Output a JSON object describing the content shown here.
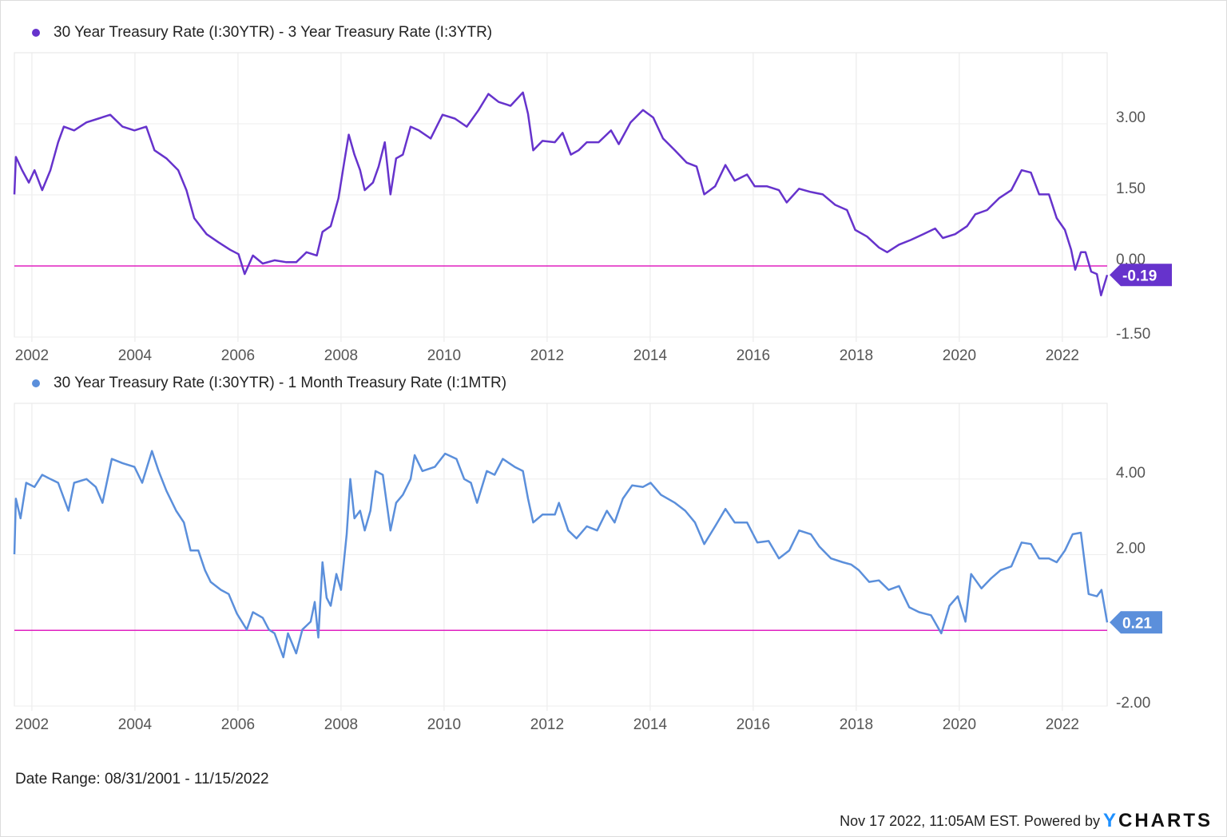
{
  "chart_data": [
    {
      "type": "line",
      "title": "30 Year Treasury Rate (I:30YTR) - 3 Year Treasury Rate (I:3YTR)",
      "color": "#6633cc",
      "ylim": [
        -1.5,
        4.5
      ],
      "yticks": [
        -1.5,
        0,
        1.5,
        3
      ],
      "ytick_labels": [
        "-1.50",
        "0.00",
        "1.50",
        "3.00"
      ],
      "xlim": [
        2001.66,
        2022.87
      ],
      "xticks": [
        2002,
        2004,
        2006,
        2008,
        2010,
        2012,
        2014,
        2016,
        2018,
        2020,
        2022
      ],
      "xtick_labels": [
        "2002",
        "2004",
        "2006",
        "2008",
        "2010",
        "2012",
        "2014",
        "2016",
        "2018",
        "2020",
        "2022"
      ],
      "reference_line": 0,
      "reference_color": "#e020c0",
      "last_value": -0.19,
      "last_value_label": "-0.19",
      "grid": true,
      "x": [
        2001.66,
        2001.69,
        2001.81,
        2001.94,
        2002.05,
        2002.2,
        2002.36,
        2002.51,
        2002.62,
        2002.82,
        2003.06,
        2003.29,
        2003.52,
        2003.76,
        2003.99,
        2004.22,
        2004.38,
        2004.61,
        2004.84,
        2005.0,
        2005.15,
        2005.39,
        2005.62,
        2005.85,
        2006.01,
        2006.13,
        2006.29,
        2006.48,
        2006.71,
        2006.94,
        2007.13,
        2007.33,
        2007.53,
        2007.64,
        2007.8,
        2007.95,
        2008.06,
        2008.15,
        2008.26,
        2008.37,
        2008.46,
        2008.62,
        2008.73,
        2008.85,
        2008.96,
        2009.07,
        2009.2,
        2009.35,
        2009.51,
        2009.74,
        2009.97,
        2010.21,
        2010.44,
        2010.67,
        2010.86,
        2011.06,
        2011.29,
        2011.53,
        2011.63,
        2011.73,
        2011.91,
        2012.15,
        2012.3,
        2012.46,
        2012.61,
        2012.77,
        2013.0,
        2013.24,
        2013.39,
        2013.62,
        2013.86,
        2014.06,
        2014.25,
        2014.48,
        2014.71,
        2014.9,
        2015.05,
        2015.26,
        2015.46,
        2015.64,
        2015.88,
        2016.03,
        2016.27,
        2016.5,
        2016.65,
        2016.89,
        2017.12,
        2017.35,
        2017.59,
        2017.82,
        2017.98,
        2018.21,
        2018.44,
        2018.6,
        2018.83,
        2019.06,
        2019.3,
        2019.53,
        2019.68,
        2019.92,
        2020.15,
        2020.31,
        2020.54,
        2020.77,
        2021.01,
        2021.21,
        2021.39,
        2021.55,
        2021.74,
        2021.89,
        2022.05,
        2022.17,
        2022.25,
        2022.36,
        2022.45,
        2022.56,
        2022.67,
        2022.75,
        2022.87
      ],
      "values": [
        1.51,
        2.3,
        2.02,
        1.76,
        2.02,
        1.6,
        2.02,
        2.61,
        2.94,
        2.86,
        3.03,
        3.11,
        3.19,
        2.94,
        2.86,
        2.94,
        2.44,
        2.27,
        2.02,
        1.6,
        1.01,
        0.67,
        0.5,
        0.34,
        0.25,
        -0.17,
        0.22,
        0.05,
        0.12,
        0.08,
        0.08,
        0.29,
        0.22,
        0.72,
        0.84,
        1.43,
        2.18,
        2.77,
        2.35,
        2.02,
        1.6,
        1.76,
        2.1,
        2.61,
        1.51,
        2.27,
        2.35,
        2.94,
        2.86,
        2.69,
        3.19,
        3.11,
        2.94,
        3.29,
        3.63,
        3.46,
        3.38,
        3.66,
        3.21,
        2.44,
        2.64,
        2.61,
        2.81,
        2.35,
        2.44,
        2.61,
        2.61,
        2.86,
        2.57,
        3.03,
        3.29,
        3.13,
        2.69,
        2.44,
        2.18,
        2.1,
        1.51,
        1.68,
        2.13,
        1.8,
        1.93,
        1.68,
        1.68,
        1.6,
        1.34,
        1.63,
        1.56,
        1.51,
        1.29,
        1.18,
        0.76,
        0.62,
        0.39,
        0.29,
        0.45,
        0.55,
        0.67,
        0.79,
        0.59,
        0.67,
        0.84,
        1.09,
        1.18,
        1.43,
        1.6,
        2.02,
        1.97,
        1.51,
        1.51,
        1.01,
        0.76,
        0.34,
        -0.08,
        0.29,
        0.29,
        -0.12,
        -0.17,
        -0.62,
        -0.19
      ]
    },
    {
      "type": "line",
      "title": "30 Year Treasury Rate (I:30YTR) - 1 Month Treasury Rate (I:1MTR)",
      "color": "#5b8fdb",
      "ylim": [
        -2,
        6
      ],
      "yticks": [
        -2,
        0,
        2,
        4
      ],
      "ytick_labels": [
        "-2.00",
        "",
        "2.00",
        "4.00"
      ],
      "xlim": [
        2001.66,
        2022.87
      ],
      "xticks": [
        2002,
        2004,
        2006,
        2008,
        2010,
        2012,
        2014,
        2016,
        2018,
        2020,
        2022
      ],
      "xtick_labels": [
        "2002",
        "2004",
        "2006",
        "2008",
        "2010",
        "2012",
        "2014",
        "2016",
        "2018",
        "2020",
        "2022"
      ],
      "reference_line": 0,
      "reference_color": "#e020c0",
      "last_value": 0.21,
      "last_value_label": "0.21",
      "grid": true,
      "x": [
        2001.66,
        2001.69,
        2001.78,
        2001.89,
        2002.05,
        2002.2,
        2002.36,
        2002.51,
        2002.71,
        2002.82,
        2003.06,
        2003.24,
        2003.37,
        2003.55,
        2003.76,
        2003.99,
        2004.14,
        2004.33,
        2004.46,
        2004.61,
        2004.8,
        2004.95,
        2005.08,
        2005.23,
        2005.36,
        2005.47,
        2005.67,
        2005.82,
        2005.98,
        2006.17,
        2006.29,
        2006.48,
        2006.6,
        2006.71,
        2006.88,
        2006.97,
        2007.13,
        2007.25,
        2007.41,
        2007.49,
        2007.56,
        2007.64,
        2007.72,
        2007.8,
        2007.91,
        2008.0,
        2008.11,
        2008.18,
        2008.26,
        2008.37,
        2008.46,
        2008.57,
        2008.67,
        2008.81,
        2008.96,
        2009.07,
        2009.2,
        2009.35,
        2009.43,
        2009.58,
        2009.82,
        2010.02,
        2010.24,
        2010.39,
        2010.52,
        2010.64,
        2010.83,
        2010.98,
        2011.14,
        2011.37,
        2011.53,
        2011.63,
        2011.73,
        2011.91,
        2012.15,
        2012.23,
        2012.41,
        2012.57,
        2012.77,
        2012.97,
        2013.16,
        2013.31,
        2013.47,
        2013.65,
        2013.86,
        2014.01,
        2014.21,
        2014.48,
        2014.68,
        2014.87,
        2015.05,
        2015.26,
        2015.46,
        2015.64,
        2015.88,
        2016.08,
        2016.3,
        2016.5,
        2016.7,
        2016.89,
        2017.12,
        2017.28,
        2017.51,
        2017.74,
        2017.9,
        2018.05,
        2018.25,
        2018.44,
        2018.63,
        2018.83,
        2019.03,
        2019.22,
        2019.45,
        2019.65,
        2019.81,
        2019.97,
        2020.12,
        2020.23,
        2020.43,
        2020.62,
        2020.8,
        2021.01,
        2021.21,
        2021.39,
        2021.55,
        2021.74,
        2021.89,
        2022.05,
        2022.2,
        2022.36,
        2022.51,
        2022.67,
        2022.76,
        2022.87
      ],
      "values": [
        2.01,
        3.48,
        2.96,
        3.9,
        3.79,
        4.11,
        4.0,
        3.9,
        3.16,
        3.9,
        4.0,
        3.79,
        3.37,
        4.53,
        4.42,
        4.32,
        3.9,
        4.74,
        4.21,
        3.69,
        3.16,
        2.85,
        2.11,
        2.11,
        1.59,
        1.28,
        1.07,
        0.96,
        0.44,
        0.02,
        0.48,
        0.33,
        0.02,
        -0.08,
        -0.71,
        -0.08,
        -0.61,
        0.02,
        0.23,
        0.75,
        -0.19,
        1.8,
        0.86,
        0.65,
        1.49,
        1.07,
        2.54,
        4.0,
        2.96,
        3.16,
        2.64,
        3.16,
        4.21,
        4.11,
        2.64,
        3.37,
        3.58,
        4.0,
        4.63,
        4.21,
        4.32,
        4.67,
        4.53,
        4.0,
        3.9,
        3.37,
        4.21,
        4.11,
        4.53,
        4.32,
        4.21,
        3.48,
        2.85,
        3.06,
        3.06,
        3.37,
        2.64,
        2.43,
        2.75,
        2.64,
        3.16,
        2.85,
        3.48,
        3.83,
        3.79,
        3.9,
        3.58,
        3.37,
        3.16,
        2.85,
        2.28,
        2.75,
        3.21,
        2.85,
        2.85,
        2.32,
        2.36,
        1.9,
        2.11,
        2.64,
        2.54,
        2.22,
        1.9,
        1.8,
        1.74,
        1.59,
        1.28,
        1.32,
        1.07,
        1.17,
        0.61,
        0.48,
        0.4,
        -0.08,
        0.65,
        0.9,
        0.23,
        1.49,
        1.11,
        1.38,
        1.59,
        1.69,
        2.32,
        2.28,
        1.9,
        1.9,
        1.8,
        2.11,
        2.54,
        2.58,
        0.96,
        0.9,
        1.07,
        0.21
      ]
    }
  ],
  "footer": {
    "date_range": "Date Range: 08/31/2001 - 11/15/2022",
    "timestamp": "Nov 17 2022, 11:05AM EST. Powered by",
    "logo_y": "Y",
    "logo_rest": "CHARTS"
  }
}
